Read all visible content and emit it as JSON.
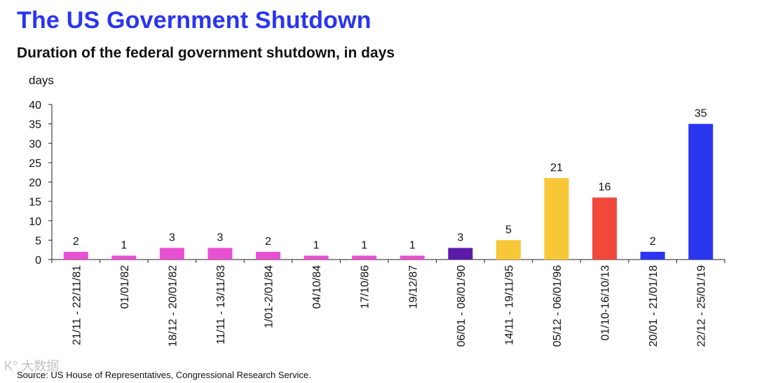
{
  "header": {
    "title": "The US Government Shutdown",
    "subtitle": "Duration of the federal government shutdown, in days"
  },
  "footer": {
    "source": "Source: US House of Representatives, Congressional Research Service."
  },
  "watermark": {
    "text": "K° 大数据"
  },
  "chart_data": {
    "type": "bar",
    "title": "Duration of the federal government shutdown, in days",
    "xlabel": "",
    "ylabel": "days",
    "ylim": [
      0,
      40
    ],
    "yticks": [
      0,
      5,
      10,
      15,
      20,
      25,
      30,
      35,
      40
    ],
    "grid": false,
    "categories": [
      "21/11 - 22/11/81",
      "01/01/82",
      "18/12 - 20/01/82",
      "11/11 - 13/11/83",
      "1/01-2/01/84",
      "04/10/84",
      "17/10/86",
      "19/12/87",
      "06/01 - 08/01/90",
      "14/11 - 19/11/95",
      "05/12 - 06/01/96",
      "01/10-16/10/13",
      "20/01 - 21/01/18",
      "22/12 - 25/01/19"
    ],
    "values": [
      2,
      1,
      3,
      3,
      2,
      1,
      1,
      1,
      3,
      5,
      21,
      16,
      2,
      35
    ],
    "colors": [
      "#e94fd1",
      "#e94fd1",
      "#e94fd1",
      "#e94fd1",
      "#e94fd1",
      "#e94fd1",
      "#e94fd1",
      "#e94fd1",
      "#5b1aa8",
      "#f7c737",
      "#f7c737",
      "#f0483a",
      "#2a35f0",
      "#2a35f0"
    ]
  }
}
